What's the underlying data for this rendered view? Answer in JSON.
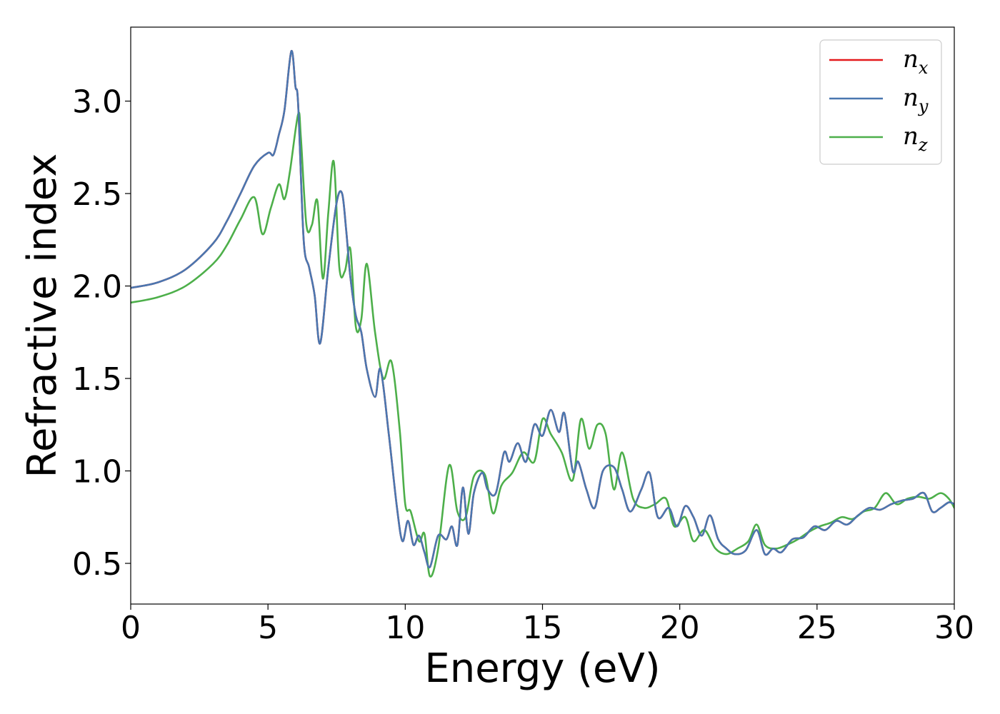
{
  "chart_data": {
    "type": "line",
    "title": "",
    "xlabel": "Energy (eV)",
    "ylabel": "Refractive index",
    "xlim": [
      0,
      30
    ],
    "ylim": [
      0.28,
      3.4
    ],
    "xticks": [
      0,
      5,
      10,
      15,
      20,
      25,
      30
    ],
    "xtick_labels": [
      "0",
      "5",
      "10",
      "15",
      "20",
      "25",
      "30"
    ],
    "yticks": [
      0.5,
      1.0,
      1.5,
      2.0,
      2.5,
      3.0
    ],
    "ytick_labels": [
      "0.5",
      "1.0",
      "1.5",
      "2.0",
      "2.5",
      "3.0"
    ],
    "grid": false,
    "legend_position": "top-right",
    "series": [
      {
        "name": "n_x",
        "legend_base": "n",
        "legend_sub": "x",
        "color": "#e41a1c",
        "x": [
          0,
          1,
          2,
          3,
          3.5,
          4,
          4.5,
          5,
          5.2,
          5.4,
          5.6,
          5.85,
          6.0,
          6.1,
          6.3,
          6.5,
          6.7,
          6.9,
          7.2,
          7.5,
          7.7,
          7.85,
          8.0,
          8.2,
          8.4,
          8.6,
          8.9,
          9.1,
          9.4,
          9.7,
          9.9,
          10.1,
          10.3,
          10.5,
          10.7,
          10.9,
          11.2,
          11.5,
          11.7,
          11.9,
          12.1,
          12.3,
          12.5,
          12.8,
          13.0,
          13.3,
          13.6,
          13.8,
          14.1,
          14.4,
          14.7,
          15.0,
          15.3,
          15.6,
          15.8,
          16.1,
          16.3,
          16.6,
          16.9,
          17.2,
          17.6,
          17.9,
          18.2,
          18.6,
          18.9,
          19.2,
          19.6,
          19.9,
          20.2,
          20.5,
          20.8,
          21.1,
          21.4,
          21.7,
          22.0,
          22.4,
          22.8,
          23.1,
          23.4,
          23.7,
          24.1,
          24.5,
          24.9,
          25.3,
          25.7,
          26.1,
          26.5,
          26.9,
          27.3,
          27.7,
          28.1,
          28.5,
          28.9,
          29.2,
          29.5,
          29.8,
          30.0
        ],
        "y": [
          1.99,
          2.02,
          2.09,
          2.23,
          2.35,
          2.5,
          2.65,
          2.72,
          2.71,
          2.82,
          2.95,
          3.27,
          3.08,
          2.98,
          2.25,
          2.1,
          1.95,
          1.69,
          2.1,
          2.45,
          2.5,
          2.3,
          2.05,
          1.84,
          1.75,
          1.55,
          1.4,
          1.55,
          1.2,
          0.8,
          0.62,
          0.73,
          0.6,
          0.65,
          0.56,
          0.48,
          0.65,
          0.63,
          0.7,
          0.6,
          0.91,
          0.66,
          0.88,
          0.99,
          0.9,
          0.88,
          1.1,
          1.05,
          1.15,
          1.05,
          1.25,
          1.19,
          1.33,
          1.21,
          1.31,
          1.0,
          1.05,
          0.9,
          0.8,
          1.0,
          1.02,
          0.9,
          0.78,
          0.9,
          0.99,
          0.75,
          0.8,
          0.7,
          0.81,
          0.75,
          0.65,
          0.76,
          0.63,
          0.58,
          0.55,
          0.57,
          0.68,
          0.55,
          0.58,
          0.56,
          0.63,
          0.64,
          0.7,
          0.68,
          0.73,
          0.71,
          0.76,
          0.8,
          0.79,
          0.82,
          0.84,
          0.85,
          0.88,
          0.78,
          0.8,
          0.83,
          0.82
        ]
      },
      {
        "name": "n_y",
        "legend_base": "n",
        "legend_sub": "y",
        "color": "#4a77b0",
        "x": [
          0,
          1,
          2,
          3,
          3.5,
          4,
          4.5,
          5,
          5.2,
          5.4,
          5.6,
          5.85,
          6.0,
          6.1,
          6.3,
          6.5,
          6.7,
          6.9,
          7.2,
          7.5,
          7.7,
          7.85,
          8.0,
          8.2,
          8.4,
          8.6,
          8.9,
          9.1,
          9.4,
          9.7,
          9.9,
          10.1,
          10.3,
          10.5,
          10.7,
          10.9,
          11.2,
          11.5,
          11.7,
          11.9,
          12.1,
          12.3,
          12.5,
          12.8,
          13.0,
          13.3,
          13.6,
          13.8,
          14.1,
          14.4,
          14.7,
          15.0,
          15.3,
          15.6,
          15.8,
          16.1,
          16.3,
          16.6,
          16.9,
          17.2,
          17.6,
          17.9,
          18.2,
          18.6,
          18.9,
          19.2,
          19.6,
          19.9,
          20.2,
          20.5,
          20.8,
          21.1,
          21.4,
          21.7,
          22.0,
          22.4,
          22.8,
          23.1,
          23.4,
          23.7,
          24.1,
          24.5,
          24.9,
          25.3,
          25.7,
          26.1,
          26.5,
          26.9,
          27.3,
          27.7,
          28.1,
          28.5,
          28.9,
          29.2,
          29.5,
          29.8,
          30.0
        ],
        "y": [
          1.99,
          2.02,
          2.09,
          2.23,
          2.35,
          2.5,
          2.65,
          2.72,
          2.71,
          2.82,
          2.95,
          3.27,
          3.08,
          2.98,
          2.25,
          2.1,
          1.95,
          1.69,
          2.1,
          2.45,
          2.5,
          2.3,
          2.05,
          1.84,
          1.75,
          1.55,
          1.4,
          1.55,
          1.2,
          0.8,
          0.62,
          0.73,
          0.6,
          0.65,
          0.56,
          0.48,
          0.65,
          0.63,
          0.7,
          0.6,
          0.91,
          0.66,
          0.88,
          0.99,
          0.9,
          0.88,
          1.1,
          1.05,
          1.15,
          1.05,
          1.25,
          1.19,
          1.33,
          1.21,
          1.31,
          1.0,
          1.05,
          0.9,
          0.8,
          1.0,
          1.02,
          0.9,
          0.78,
          0.9,
          0.99,
          0.75,
          0.8,
          0.7,
          0.81,
          0.75,
          0.65,
          0.76,
          0.63,
          0.58,
          0.55,
          0.57,
          0.68,
          0.55,
          0.58,
          0.56,
          0.63,
          0.64,
          0.7,
          0.68,
          0.73,
          0.71,
          0.76,
          0.8,
          0.79,
          0.82,
          0.84,
          0.85,
          0.88,
          0.78,
          0.8,
          0.83,
          0.82
        ]
      },
      {
        "name": "n_z",
        "legend_base": "n",
        "legend_sub": "z",
        "color": "#4daf4a",
        "x": [
          0,
          1,
          2,
          3,
          3.5,
          4,
          4.5,
          4.8,
          5.1,
          5.4,
          5.6,
          5.8,
          6.1,
          6.2,
          6.4,
          6.6,
          6.8,
          7.0,
          7.2,
          7.4,
          7.6,
          7.8,
          8.0,
          8.2,
          8.4,
          8.6,
          8.9,
          9.2,
          9.5,
          9.8,
          10.0,
          10.2,
          10.5,
          10.7,
          10.9,
          11.2,
          11.6,
          11.9,
          12.2,
          12.5,
          12.9,
          13.2,
          13.5,
          13.9,
          14.3,
          14.7,
          15.0,
          15.3,
          15.7,
          16.1,
          16.4,
          16.7,
          17.0,
          17.3,
          17.6,
          17.9,
          18.3,
          18.7,
          19.1,
          19.5,
          19.8,
          20.2,
          20.5,
          20.9,
          21.3,
          21.7,
          22.1,
          22.5,
          22.8,
          23.1,
          23.5,
          23.9,
          24.3,
          24.7,
          25.1,
          25.5,
          25.9,
          26.3,
          26.7,
          27.1,
          27.5,
          27.9,
          28.3,
          28.7,
          29.1,
          29.5,
          29.8,
          30.0
        ],
        "y": [
          1.91,
          1.94,
          2.0,
          2.12,
          2.22,
          2.36,
          2.48,
          2.28,
          2.42,
          2.55,
          2.47,
          2.62,
          2.93,
          2.8,
          2.33,
          2.33,
          2.46,
          2.04,
          2.4,
          2.67,
          2.1,
          2.08,
          2.2,
          1.78,
          1.82,
          2.12,
          1.75,
          1.5,
          1.59,
          1.22,
          0.82,
          0.78,
          0.62,
          0.66,
          0.43,
          0.58,
          1.03,
          0.78,
          0.75,
          0.97,
          0.98,
          0.77,
          0.92,
          0.99,
          1.1,
          1.05,
          1.28,
          1.2,
          1.1,
          0.95,
          1.28,
          1.12,
          1.25,
          1.2,
          0.9,
          1.1,
          0.85,
          0.8,
          0.82,
          0.85,
          0.7,
          0.75,
          0.62,
          0.68,
          0.58,
          0.55,
          0.58,
          0.62,
          0.71,
          0.6,
          0.58,
          0.6,
          0.63,
          0.67,
          0.7,
          0.72,
          0.75,
          0.74,
          0.78,
          0.8,
          0.88,
          0.82,
          0.85,
          0.86,
          0.85,
          0.88,
          0.85,
          0.8
        ]
      }
    ]
  }
}
